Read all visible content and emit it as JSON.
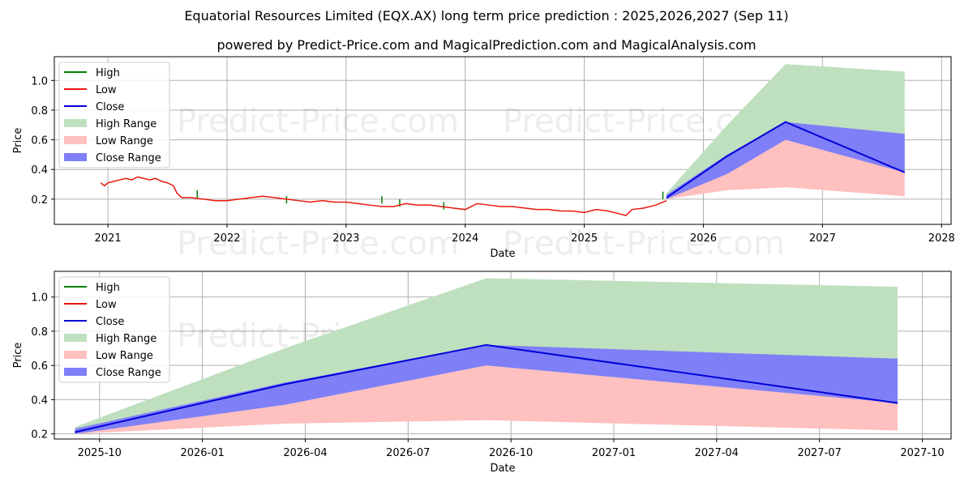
{
  "header": {
    "title": "Equatorial Resources Limited (EQX.AX) long term price prediction : 2025,2026,2027 (Sep 11)",
    "subtitle": "powered by Predict-Price.com and MagicalPrediction.com and MagicalAnalysis.com"
  },
  "watermark": "Predict-Price.com",
  "colors": {
    "high": "#008000",
    "low": "#e8170d",
    "close": "#0000d8",
    "high_range": "#bfe0bf",
    "low_range": "#ffc0c0",
    "close_range": "#7f7ff8",
    "grid": "#b0b0b0"
  },
  "chart_data": [
    {
      "type": "line",
      "name": "full-history",
      "xlabel": "Date",
      "ylabel": "Price",
      "xlim": [
        2020.55,
        2028.08
      ],
      "ylim": [
        0.03,
        1.16
      ],
      "x_ticks": [
        2021,
        2022,
        2023,
        2024,
        2025,
        2026,
        2027,
        2028
      ],
      "x_tick_labels": [
        "2021",
        "2022",
        "2023",
        "2024",
        "2025",
        "2026",
        "2027",
        "2028"
      ],
      "y_ticks": [
        0.2,
        0.4,
        0.6,
        0.8,
        1.0
      ],
      "y_tick_labels": [
        "0.2",
        "0.4",
        "0.6",
        "0.8",
        "1.0"
      ],
      "grid": true,
      "legend": {
        "position": "top-left",
        "entries": [
          "High",
          "Low",
          "Close",
          "High Range",
          "Low Range",
          "Close Range"
        ]
      },
      "history": {
        "x": [
          2020.94,
          2020.97,
          2021.0,
          2021.05,
          2021.1,
          2021.15,
          2021.2,
          2021.25,
          2021.3,
          2021.35,
          2021.4,
          2021.45,
          2021.5,
          2021.55,
          2021.58,
          2021.62,
          2021.7,
          2021.8,
          2021.9,
          2022.0,
          2022.1,
          2022.2,
          2022.3,
          2022.4,
          2022.5,
          2022.6,
          2022.7,
          2022.8,
          2022.9,
          2023.0,
          2023.1,
          2023.2,
          2023.3,
          2023.4,
          2023.5,
          2023.6,
          2023.7,
          2023.8,
          2023.9,
          2024.0,
          2024.1,
          2024.2,
          2024.3,
          2024.4,
          2024.5,
          2024.6,
          2024.7,
          2024.8,
          2024.9,
          2025.0,
          2025.1,
          2025.2,
          2025.3,
          2025.35,
          2025.4,
          2025.5,
          2025.6,
          2025.69
        ],
        "low": [
          0.31,
          0.29,
          0.31,
          0.32,
          0.33,
          0.34,
          0.33,
          0.35,
          0.34,
          0.33,
          0.34,
          0.32,
          0.31,
          0.29,
          0.24,
          0.21,
          0.21,
          0.2,
          0.19,
          0.19,
          0.2,
          0.21,
          0.22,
          0.21,
          0.2,
          0.19,
          0.18,
          0.19,
          0.18,
          0.18,
          0.17,
          0.16,
          0.15,
          0.15,
          0.17,
          0.16,
          0.16,
          0.15,
          0.14,
          0.13,
          0.17,
          0.16,
          0.15,
          0.15,
          0.14,
          0.13,
          0.13,
          0.12,
          0.12,
          0.11,
          0.13,
          0.12,
          0.1,
          0.09,
          0.13,
          0.14,
          0.16,
          0.19
        ],
        "high_spikes": [
          {
            "x": 2021.75,
            "y": 0.26
          },
          {
            "x": 2022.5,
            "y": 0.22
          },
          {
            "x": 2023.3,
            "y": 0.22
          },
          {
            "x": 2023.45,
            "y": 0.2
          },
          {
            "x": 2023.82,
            "y": 0.18
          },
          {
            "x": 2025.66,
            "y": 0.25
          }
        ]
      },
      "forecast": {
        "x": [
          2025.69,
          2026.2,
          2026.69,
          2027.69
        ],
        "close": [
          0.21,
          0.49,
          0.72,
          0.38
        ],
        "high_range_upper": [
          0.24,
          0.7,
          1.11,
          1.06
        ],
        "low_range_lower": [
          0.2,
          0.26,
          0.28,
          0.22
        ],
        "close_range_upper": [
          0.23,
          0.5,
          0.72,
          0.64
        ],
        "close_range_lower": [
          0.2,
          0.37,
          0.6,
          0.38
        ]
      }
    },
    {
      "type": "line",
      "name": "forecast-zoom",
      "xlabel": "Date",
      "ylabel": "Price",
      "xlim": [
        2025.64,
        2027.82
      ],
      "ylim": [
        0.17,
        1.15
      ],
      "x_ticks": [
        2025.75,
        2026.0,
        2026.25,
        2026.5,
        2026.75,
        2027.0,
        2027.25,
        2027.5,
        2027.75
      ],
      "x_tick_labels": [
        "2025-10",
        "2026-01",
        "2026-04",
        "2026-07",
        "2026-10",
        "2027-01",
        "2027-04",
        "2027-07",
        "2027-10"
      ],
      "y_ticks": [
        0.2,
        0.4,
        0.6,
        0.8,
        1.0
      ],
      "y_tick_labels": [
        "0.2",
        "0.4",
        "0.6",
        "0.8",
        "1.0"
      ],
      "grid": true,
      "legend": {
        "position": "top-left",
        "entries": [
          "High",
          "Low",
          "Close",
          "High Range",
          "Low Range",
          "Close Range"
        ]
      },
      "forecast": {
        "x": [
          2025.69,
          2026.2,
          2026.69,
          2027.69
        ],
        "close": [
          0.21,
          0.49,
          0.72,
          0.38
        ],
        "high_range_upper": [
          0.24,
          0.7,
          1.11,
          1.06
        ],
        "low_range_lower": [
          0.2,
          0.26,
          0.28,
          0.22
        ],
        "close_range_upper": [
          0.23,
          0.5,
          0.72,
          0.64
        ],
        "close_range_lower": [
          0.2,
          0.37,
          0.6,
          0.38
        ]
      }
    }
  ]
}
